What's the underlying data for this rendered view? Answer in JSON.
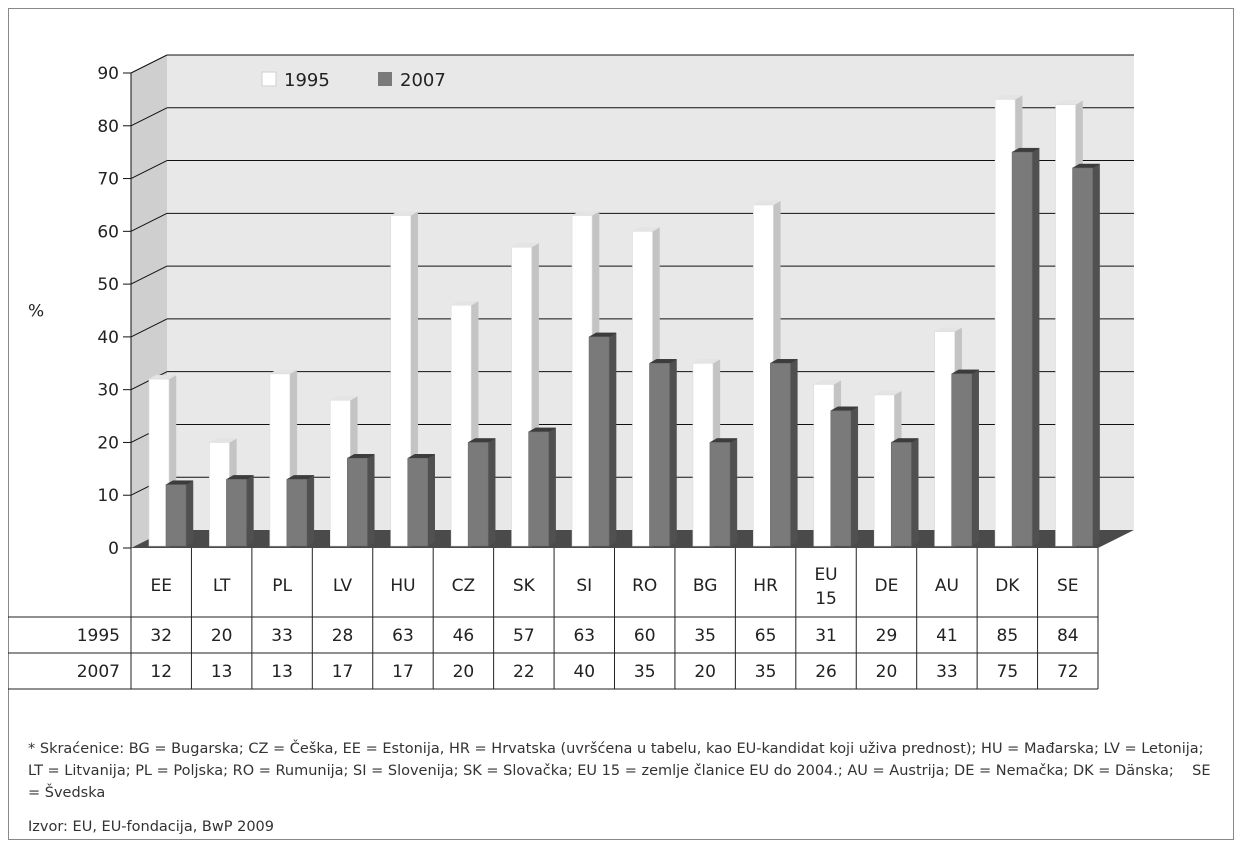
{
  "chart_data": {
    "type": "bar",
    "ylabel": "%",
    "ylim": [
      0,
      90
    ],
    "yticks": [
      "0",
      "10",
      "20",
      "30",
      "40",
      "50",
      "60",
      "70",
      "80",
      "90"
    ],
    "grid": true,
    "legend_position": "top",
    "categories": [
      "EE",
      "LT",
      "PL",
      "LV",
      "HU",
      "CZ",
      "SK",
      "SI",
      "RO",
      "BG",
      "HR",
      "EU 15",
      "DE",
      "AU",
      "DK",
      "SE"
    ],
    "series": [
      {
        "name": "1995",
        "color": "#ffffff",
        "values": [
          32,
          20,
          33,
          28,
          63,
          46,
          57,
          63,
          60,
          35,
          65,
          31,
          29,
          41,
          85,
          84
        ]
      },
      {
        "name": "2007",
        "color": "#7a7a7a",
        "values": [
          12,
          13,
          13,
          17,
          17,
          20,
          22,
          40,
          35,
          20,
          35,
          26,
          20,
          33,
          75,
          72
        ]
      }
    ],
    "table": {
      "rows": [
        {
          "label": "1995",
          "values": [
            "32",
            "20",
            "33",
            "28",
            "63",
            "46",
            "57",
            "63",
            "60",
            "35",
            "65",
            "31",
            "29",
            "41",
            "85",
            "84"
          ]
        },
        {
          "label": "2007",
          "values": [
            "12",
            "13",
            "13",
            "17",
            "17",
            "20",
            "22",
            "40",
            "35",
            "20",
            "35",
            "26",
            "20",
            "33",
            "75",
            "72"
          ]
        }
      ]
    }
  },
  "notes": {
    "footnote": "* Skraćenice: BG = Bugarska; CZ = Češka, EE = Estonija, HR = Hrvatska (uvršćena u tabelu, kao EU-kandidat koji uživa prednost); HU = Mađarska; LV = Letonija; LT = Litvanija; PL = Poljska; RO = Rumunija; SI = Slovenija; SK = Slovačka; EU 15 = zemlje članice EU do 2004.; AU = Austrija; DE = Nemačka; DK = Dänska;    SE = Švedska",
    "source": "Izvor: EU, EU-fondacija, BwP 2009"
  }
}
